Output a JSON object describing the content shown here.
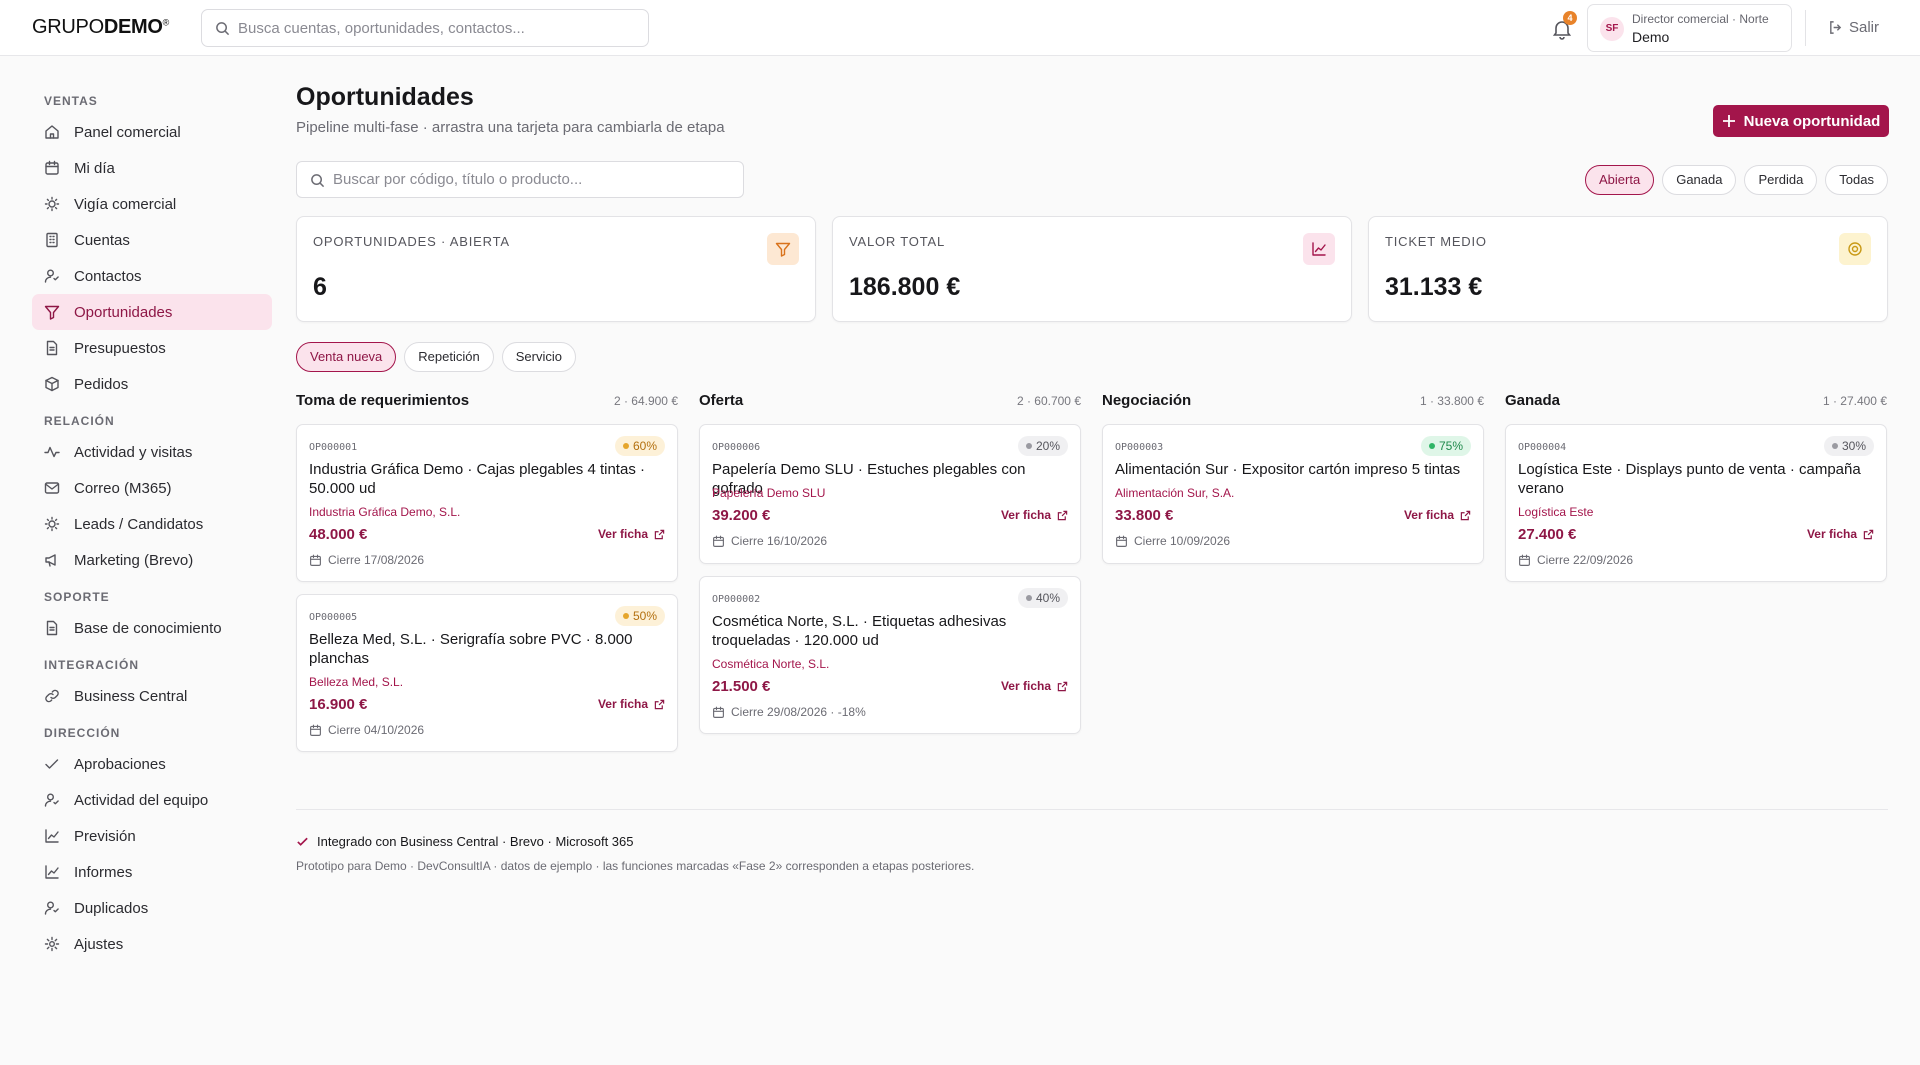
{
  "brand": {
    "logo_light": "GRUPO",
    "logo_bold": "DEMO",
    "logo_mark": "®"
  },
  "search": {
    "placeholder": "Busca cuentas, oportunidades, contactos..."
  },
  "notifications": {
    "count": "4"
  },
  "user": {
    "initials": "SF",
    "role": "Director comercial · Norte",
    "name": "Demo"
  },
  "logout_label": "Salir",
  "sidebar": {
    "sections": [
      {
        "title": "VENTAS",
        "items": [
          {
            "label": "Panel comercial",
            "icon": "home-icon"
          },
          {
            "label": "Mi día",
            "icon": "calendar-icon"
          },
          {
            "label": "Vigía comercial",
            "icon": "lightbulb-icon"
          },
          {
            "label": "Cuentas",
            "icon": "building-icon"
          },
          {
            "label": "Contactos",
            "icon": "contact-icon"
          },
          {
            "label": "Oportunidades",
            "icon": "funnel-icon",
            "active": true
          },
          {
            "label": "Presupuestos",
            "icon": "document-icon"
          },
          {
            "label": "Pedidos",
            "icon": "box-icon"
          }
        ]
      },
      {
        "title": "RELACIÓN",
        "items": [
          {
            "label": "Actividad y visitas",
            "icon": "activity-icon"
          },
          {
            "label": "Correo (M365)",
            "icon": "mail-icon"
          },
          {
            "label": "Leads / Candidatos",
            "icon": "lightbulb-icon"
          },
          {
            "label": "Marketing (Brevo)",
            "icon": "megaphone-icon"
          }
        ]
      },
      {
        "title": "SOPORTE",
        "items": [
          {
            "label": "Base de conocimiento",
            "icon": "document-icon"
          }
        ]
      },
      {
        "title": "INTEGRACIÓN",
        "items": [
          {
            "label": "Business Central",
            "icon": "link-icon"
          }
        ]
      },
      {
        "title": "DIRECCIÓN",
        "items": [
          {
            "label": "Aprobaciones",
            "icon": "check-icon"
          },
          {
            "label": "Actividad del equipo",
            "icon": "contact-icon"
          },
          {
            "label": "Previsión",
            "icon": "chart-icon"
          },
          {
            "label": "Informes",
            "icon": "chart-icon"
          },
          {
            "label": "Duplicados",
            "icon": "contact-icon"
          },
          {
            "label": "Ajustes",
            "icon": "gear-icon"
          }
        ]
      }
    ]
  },
  "page": {
    "title": "Oportunidades",
    "subtitle": "Pipeline multi-fase · arrastra una tarjeta para cambiarla de etapa",
    "new_button": "Nueva oportunidad",
    "search_placeholder": "Buscar por código, título o producto..."
  },
  "status_filters": [
    {
      "label": "Abierta",
      "active": true
    },
    {
      "label": "Ganada",
      "active": false
    },
    {
      "label": "Perdida",
      "active": false
    },
    {
      "label": "Todas",
      "active": false
    }
  ],
  "kpis": [
    {
      "label": "OPORTUNIDADES · ABIERTA",
      "value": "6",
      "icon": "funnel-icon",
      "icon_bg": "#fde8d3",
      "icon_color": "#d9731c"
    },
    {
      "label": "VALOR TOTAL",
      "value": "186.800 €",
      "icon": "chart-icon",
      "icon_bg": "#fbe3ec",
      "icon_color": "#a3154b"
    },
    {
      "label": "TICKET MEDIO",
      "value": "31.133 €",
      "icon": "target-icon",
      "icon_bg": "#fdf3cf",
      "icon_color": "#c99a16"
    }
  ],
  "type_filters": [
    {
      "label": "Venta nueva",
      "active": true
    },
    {
      "label": "Repetición",
      "active": false
    },
    {
      "label": "Servicio",
      "active": false
    }
  ],
  "columns": [
    {
      "title": "Toma de requerimientos",
      "summary": "2 · 64.900 €",
      "cards": [
        {
          "code": "OP000001",
          "prob": "60%",
          "prob_tone": "amber",
          "title": "Industria Gráfica Demo · Cajas plegables 4 tintas · 50.000 ud",
          "account": "Industria Gráfica Demo, S.L.",
          "amount": "48.000 €",
          "close": "Cierre 17/08/2026",
          "link": "Ver ficha"
        },
        {
          "code": "OP000005",
          "prob": "50%",
          "prob_tone": "amber",
          "title": "Belleza Med, S.L. · Serigrafía sobre PVC · 8.000 planchas",
          "account": "Belleza Med, S.L.",
          "amount": "16.900 €",
          "close": "Cierre 04/10/2026",
          "link": "Ver ficha"
        }
      ]
    },
    {
      "title": "Oferta",
      "summary": "2 · 60.700 €",
      "cards": [
        {
          "code": "OP000006",
          "prob": "20%",
          "prob_tone": "gray",
          "title": "Papelería Demo SLU · Estuches plegables con gofrado",
          "account": "Papelería Demo SLU",
          "amount": "39.200 €",
          "close": "Cierre 16/10/2026",
          "link": "Ver ficha"
        },
        {
          "code": "OP000002",
          "prob": "40%",
          "prob_tone": "gray",
          "title": "Cosmética Norte, S.L. · Etiquetas adhesivas troqueladas · 120.000 ud",
          "account": "Cosmética Norte, S.L.",
          "amount": "21.500 €",
          "close": "Cierre 29/08/2026 · -18%",
          "link": "Ver ficha"
        }
      ]
    },
    {
      "title": "Negociación",
      "summary": "1 · 33.800 €",
      "cards": [
        {
          "code": "OP000003",
          "prob": "75%",
          "prob_tone": "green",
          "title": "Alimentación Sur · Expositor cartón impreso 5 tintas",
          "account": "Alimentación Sur, S.A.",
          "amount": "33.800 €",
          "close": "Cierre 10/09/2026",
          "link": "Ver ficha"
        }
      ]
    },
    {
      "title": "Ganada",
      "summary": "1 · 27.400 €",
      "cards": [
        {
          "code": "OP000004",
          "prob": "30%",
          "prob_tone": "gray",
          "title": "Logística Este · Displays punto de venta · campaña verano",
          "account": "Logística Este",
          "amount": "27.400 €",
          "close": "Cierre 22/09/2026",
          "link": "Ver ficha"
        }
      ]
    }
  ],
  "footer": {
    "integration": "Integrado con Business Central · Brevo · Microsoft 365",
    "note": "Prototipo para Demo · DevConsultIA · datos de ejemplo · las funciones marcadas «Fase 2» corresponden a etapas posteriores."
  },
  "colors": {
    "accent": "#a3154b",
    "accent_soft": "#fbe3ec"
  }
}
